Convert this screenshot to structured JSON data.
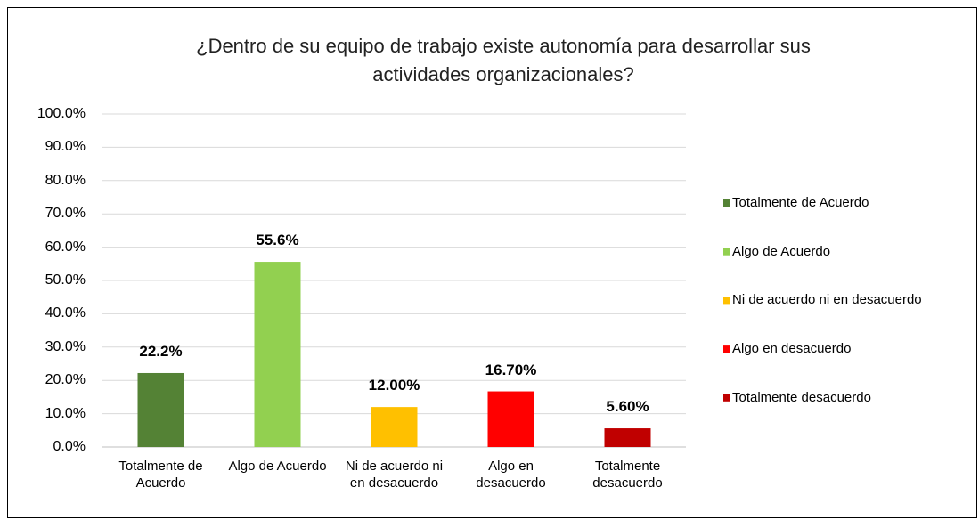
{
  "chart_data": {
    "type": "bar",
    "title": "¿Dentro de su equipo de trabajo existe autonomía  para desarrollar sus actividades organizacionales?",
    "categories": [
      "Totalmente de Acuerdo",
      "Algo de Acuerdo",
      "Ni de acuerdo ni en desacuerdo",
      "Algo en desacuerdo",
      "Totalmente desacuerdo"
    ],
    "values": [
      22.2,
      55.6,
      12.0,
      16.7,
      5.6
    ],
    "value_labels": [
      "22.2%",
      "55.6%",
      "12.00%",
      "16.70%",
      "5.60%"
    ],
    "colors": [
      "#548235",
      "#92d050",
      "#ffc000",
      "#ff0000",
      "#c00000"
    ],
    "ylim": [
      0,
      100
    ],
    "yticks": [
      {
        "value": 0,
        "label": "0.0%"
      },
      {
        "value": 10,
        "label": "10.0%"
      },
      {
        "value": 20,
        "label": "20.0%"
      },
      {
        "value": 30,
        "label": "30.0%"
      },
      {
        "value": 40,
        "label": "40.0%"
      },
      {
        "value": 50,
        "label": "50.0%"
      },
      {
        "value": 60,
        "label": "60.0%"
      },
      {
        "value": 70,
        "label": "70.0%"
      },
      {
        "value": 80,
        "label": "80.0%"
      },
      {
        "value": 90,
        "label": "90.0%"
      },
      {
        "value": 100,
        "label": "100.0%"
      }
    ],
    "grid": true,
    "legend": "right"
  }
}
